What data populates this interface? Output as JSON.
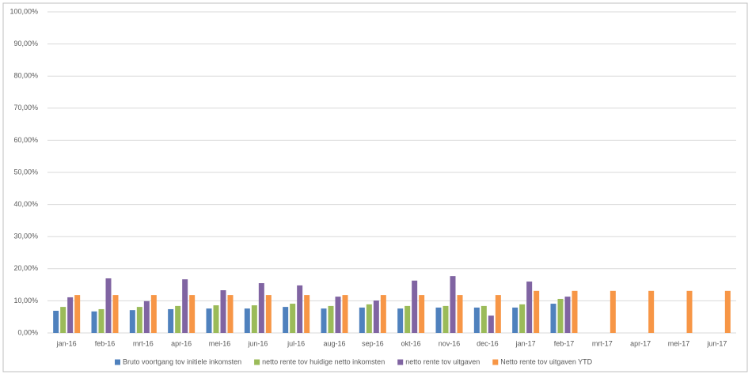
{
  "chart_data": {
    "type": "bar",
    "categories": [
      "jan-16",
      "feb-16",
      "mrt-16",
      "apr-16",
      "mei-16",
      "jun-16",
      "jul-16",
      "aug-16",
      "sep-16",
      "okt-16",
      "nov-16",
      "dec-16",
      "jan-17",
      "feb-17",
      "mrt-17",
      "apr-17",
      "mei-17",
      "jun-17"
    ],
    "series": [
      {
        "name": "Bruto voortgang tov initiele inkomsten",
        "color": "#4f81bd",
        "values": [
          6.9,
          6.7,
          7.1,
          7.4,
          7.6,
          7.6,
          8.1,
          7.6,
          7.9,
          7.6,
          7.9,
          7.9,
          7.9,
          9.1,
          null,
          null,
          null,
          null
        ]
      },
      {
        "name": "netto rente tov huidige netto inkomsten",
        "color": "#9bbb59",
        "values": [
          8.1,
          7.4,
          8.1,
          8.4,
          8.6,
          8.6,
          9.1,
          8.4,
          8.9,
          8.4,
          8.4,
          8.4,
          8.9,
          10.6,
          null,
          null,
          null,
          null
        ]
      },
      {
        "name": "netto rente tov uitgaven",
        "color": "#8064a2",
        "values": [
          11.1,
          17.0,
          9.9,
          16.7,
          13.3,
          15.5,
          14.8,
          11.3,
          10.1,
          16.3,
          17.7,
          5.4,
          16.0,
          11.3,
          null,
          null,
          null,
          null
        ]
      },
      {
        "name": "Netto rente tov uitgaven YTD",
        "color": "#f79646",
        "values": [
          11.8,
          11.8,
          11.8,
          11.8,
          11.8,
          11.8,
          11.8,
          11.8,
          11.8,
          11.8,
          11.8,
          11.8,
          13.1,
          13.1,
          13.1,
          13.1,
          13.1,
          13.1
        ]
      }
    ],
    "ylim": [
      0,
      100
    ],
    "yticks": [
      {
        "value": 0,
        "label": "0,00%"
      },
      {
        "value": 10,
        "label": "10,00%"
      },
      {
        "value": 20,
        "label": "20,00%"
      },
      {
        "value": 30,
        "label": "30,00%"
      },
      {
        "value": 40,
        "label": "40,00%"
      },
      {
        "value": 50,
        "label": "50,00%"
      },
      {
        "value": 60,
        "label": "60,00%"
      },
      {
        "value": 70,
        "label": "70,00%"
      },
      {
        "value": 80,
        "label": "80,00%"
      },
      {
        "value": 90,
        "label": "90,00%"
      },
      {
        "value": 100,
        "label": "100,00%"
      }
    ],
    "grid": true,
    "legend": "bottom"
  }
}
